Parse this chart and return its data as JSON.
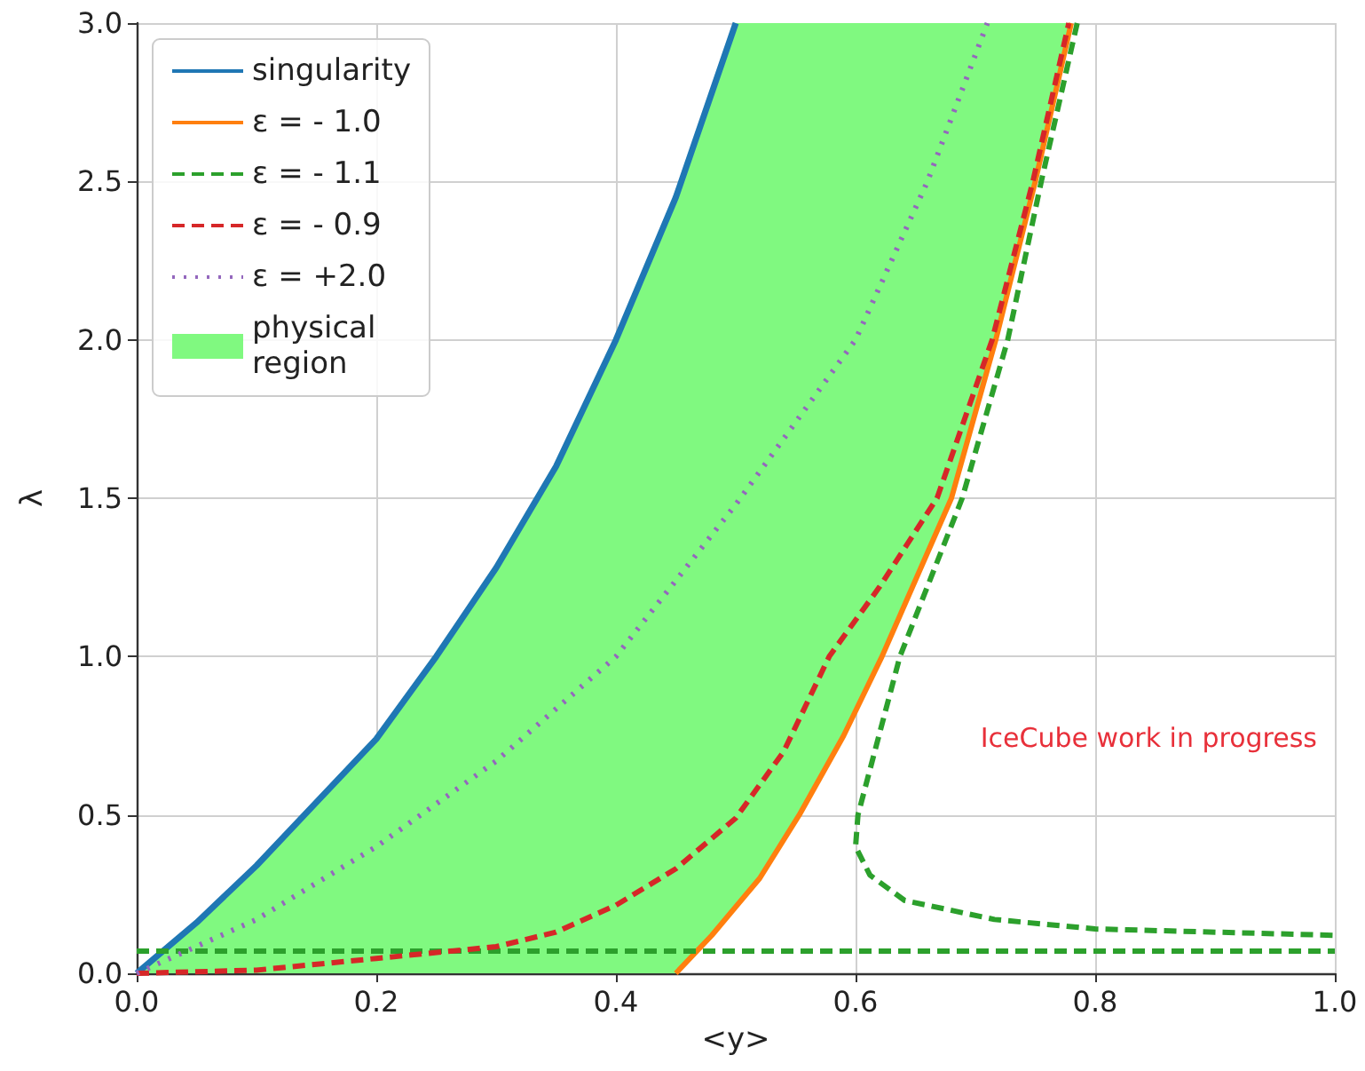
{
  "chart_data": {
    "type": "line",
    "xlabel": "<y>",
    "ylabel": "λ",
    "xlim": [
      0,
      1
    ],
    "ylim": [
      0,
      3
    ],
    "xticks": [
      {
        "value": 0,
        "label": "0.0"
      },
      {
        "value": 0.2,
        "label": "0.2"
      },
      {
        "value": 0.4,
        "label": "0.4"
      },
      {
        "value": 0.6,
        "label": "0.6"
      },
      {
        "value": 0.8,
        "label": "0.8"
      },
      {
        "value": 1,
        "label": "1.0"
      }
    ],
    "yticks": [
      {
        "value": 0,
        "label": "0.0"
      },
      {
        "value": 0.5,
        "label": "0.5"
      },
      {
        "value": 1,
        "label": "1.0"
      },
      {
        "value": 1.5,
        "label": "1.5"
      },
      {
        "value": 2,
        "label": "2.0"
      },
      {
        "value": 2.5,
        "label": "2.5"
      },
      {
        "value": 3,
        "label": "3.0"
      }
    ],
    "grid": true,
    "legend": "top left",
    "annotations": [
      "IceCube work in progress"
    ],
    "series": [
      {
        "name": "singularity",
        "color": "#1f77b4",
        "line_style": "solid",
        "x": [
          0,
          0.05,
          0.1,
          0.15,
          0.2,
          0.25,
          0.3,
          0.35,
          0.4,
          0.45,
          0.5
        ],
        "values": [
          0,
          0.16,
          0.34,
          0.54,
          0.74,
          1.0,
          1.28,
          1.6,
          2.0,
          2.45,
          3.0
        ]
      },
      {
        "name": "ε = - 1.0",
        "color": "#ff7f0e",
        "line_style": "solid",
        "x": [
          0.45,
          0.48,
          0.52,
          0.553,
          0.59,
          0.622,
          0.68,
          0.717,
          0.75,
          0.78
        ],
        "values": [
          0,
          0.12,
          0.3,
          0.5,
          0.75,
          1.0,
          1.5,
          2.0,
          2.5,
          3.0
        ]
      },
      {
        "name": "ε = - 1.1",
        "color": "#2ca02c",
        "line_style": "dashed",
        "x": [
          0.785,
          0.755,
          0.727,
          0.689,
          0.637,
          0.602,
          0.6,
          0.612,
          0.641,
          0.716,
          0.8,
          1.0
        ],
        "values": [
          3.0,
          2.5,
          2.0,
          1.5,
          1.0,
          0.5,
          0.4,
          0.31,
          0.23,
          0.17,
          0.14,
          0.12
        ]
      },
      {
        "color": "#2ca02c",
        "line_style": "dashed",
        "x": [
          0,
          1.0
        ],
        "values": [
          0.07,
          0.07
        ]
      },
      {
        "name": "ε = - 0.9",
        "color": "#d62728",
        "line_style": "dashed",
        "x": [
          0,
          0.1,
          0.2,
          0.3,
          0.35,
          0.4,
          0.45,
          0.5,
          0.54,
          0.578,
          0.62,
          0.668,
          0.714,
          0.748,
          0.778
        ],
        "values": [
          0,
          0.01,
          0.047,
          0.084,
          0.13,
          0.215,
          0.33,
          0.49,
          0.7,
          1.0,
          1.22,
          1.5,
          2.0,
          2.5,
          3.0
        ]
      },
      {
        "name": "ε = +2.0",
        "color": "#9467bd",
        "line_style": "dotted",
        "x": [
          0,
          0.1,
          0.2,
          0.3,
          0.4,
          0.5,
          0.6,
          0.66,
          0.71
        ],
        "values": [
          0,
          0.17,
          0.4,
          0.67,
          1.0,
          1.48,
          2.0,
          2.5,
          3.0
        ]
      },
      {
        "name": "physical region",
        "type": "area",
        "color": "#80f980",
        "x": [
          0,
          0.05,
          0.1,
          0.15,
          0.2,
          0.25,
          0.3,
          0.35,
          0.4,
          0.45,
          0.5,
          0.78,
          0.75,
          0.717,
          0.68,
          0.622,
          0.59,
          0.553,
          0.52,
          0.48,
          0.45
        ],
        "values": [
          0,
          0.16,
          0.34,
          0.54,
          0.74,
          1.0,
          1.28,
          1.6,
          2.0,
          2.45,
          3.0,
          3.0,
          2.5,
          2.0,
          1.5,
          1.0,
          0.75,
          0.5,
          0.3,
          0.12,
          0
        ]
      }
    ]
  }
}
